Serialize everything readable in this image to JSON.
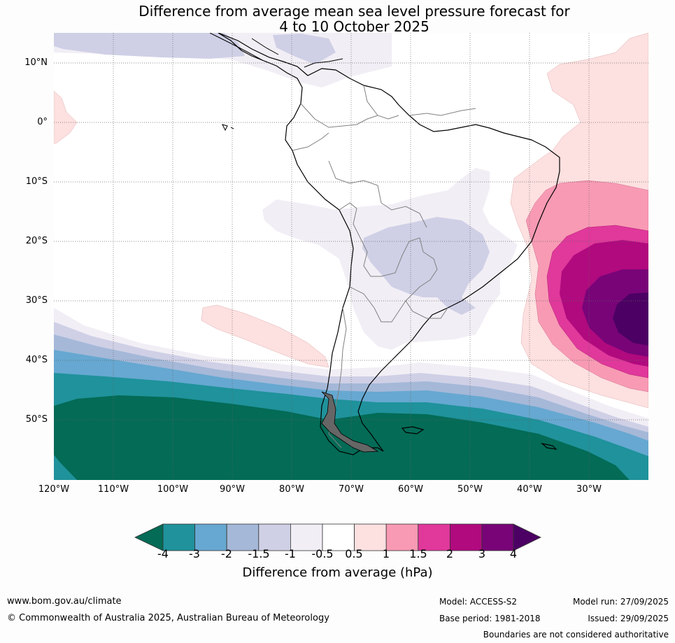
{
  "title": {
    "line1": "Difference from average mean sea level pressure forecast for",
    "line2": "4 to 10 October 2025"
  },
  "map": {
    "lat_labels": [
      "10°N",
      "0°",
      "10°S",
      "20°S",
      "30°S",
      "40°S",
      "50°S"
    ],
    "lon_labels": [
      "120°W",
      "110°W",
      "100°W",
      "90°W",
      "80°W",
      "70°W",
      "60°W",
      "50°W",
      "40°W",
      "30°W"
    ],
    "region": "South America",
    "colors": {
      "neg4": "#036b56",
      "neg3": "#1f929b",
      "neg2": "#66a8d1",
      "neg15": "#a5b8d8",
      "neg1": "#cfd0e6",
      "neg05": "#f2eef5",
      "zero": "#ffffff",
      "pos05": "#fde0e0",
      "pos1": "#f89ab4",
      "pos15": "#e0389b",
      "pos2": "#b00a7e",
      "pos3": "#780478",
      "pos4": "#4c0064"
    }
  },
  "colorbar": {
    "ticks": [
      "-4",
      "-3",
      "-2",
      "-1.5",
      "-1",
      "-0.5",
      "0.5",
      "1",
      "1.5",
      "2",
      "3",
      "4"
    ],
    "label": "Difference from average (hPa)"
  },
  "footer": {
    "url": "www.bom.gov.au/climate",
    "copyright": "© Commonwealth of Australia 2025, Australian Bureau of Meteorology",
    "model": "Model: ACCESS-S2",
    "base_period": "Base period: 1981-2018",
    "model_run": "Model run: 27/09/2025",
    "issued": "Issued: 29/09/2025",
    "disclaimer": "Boundaries are not considered authoritative"
  }
}
